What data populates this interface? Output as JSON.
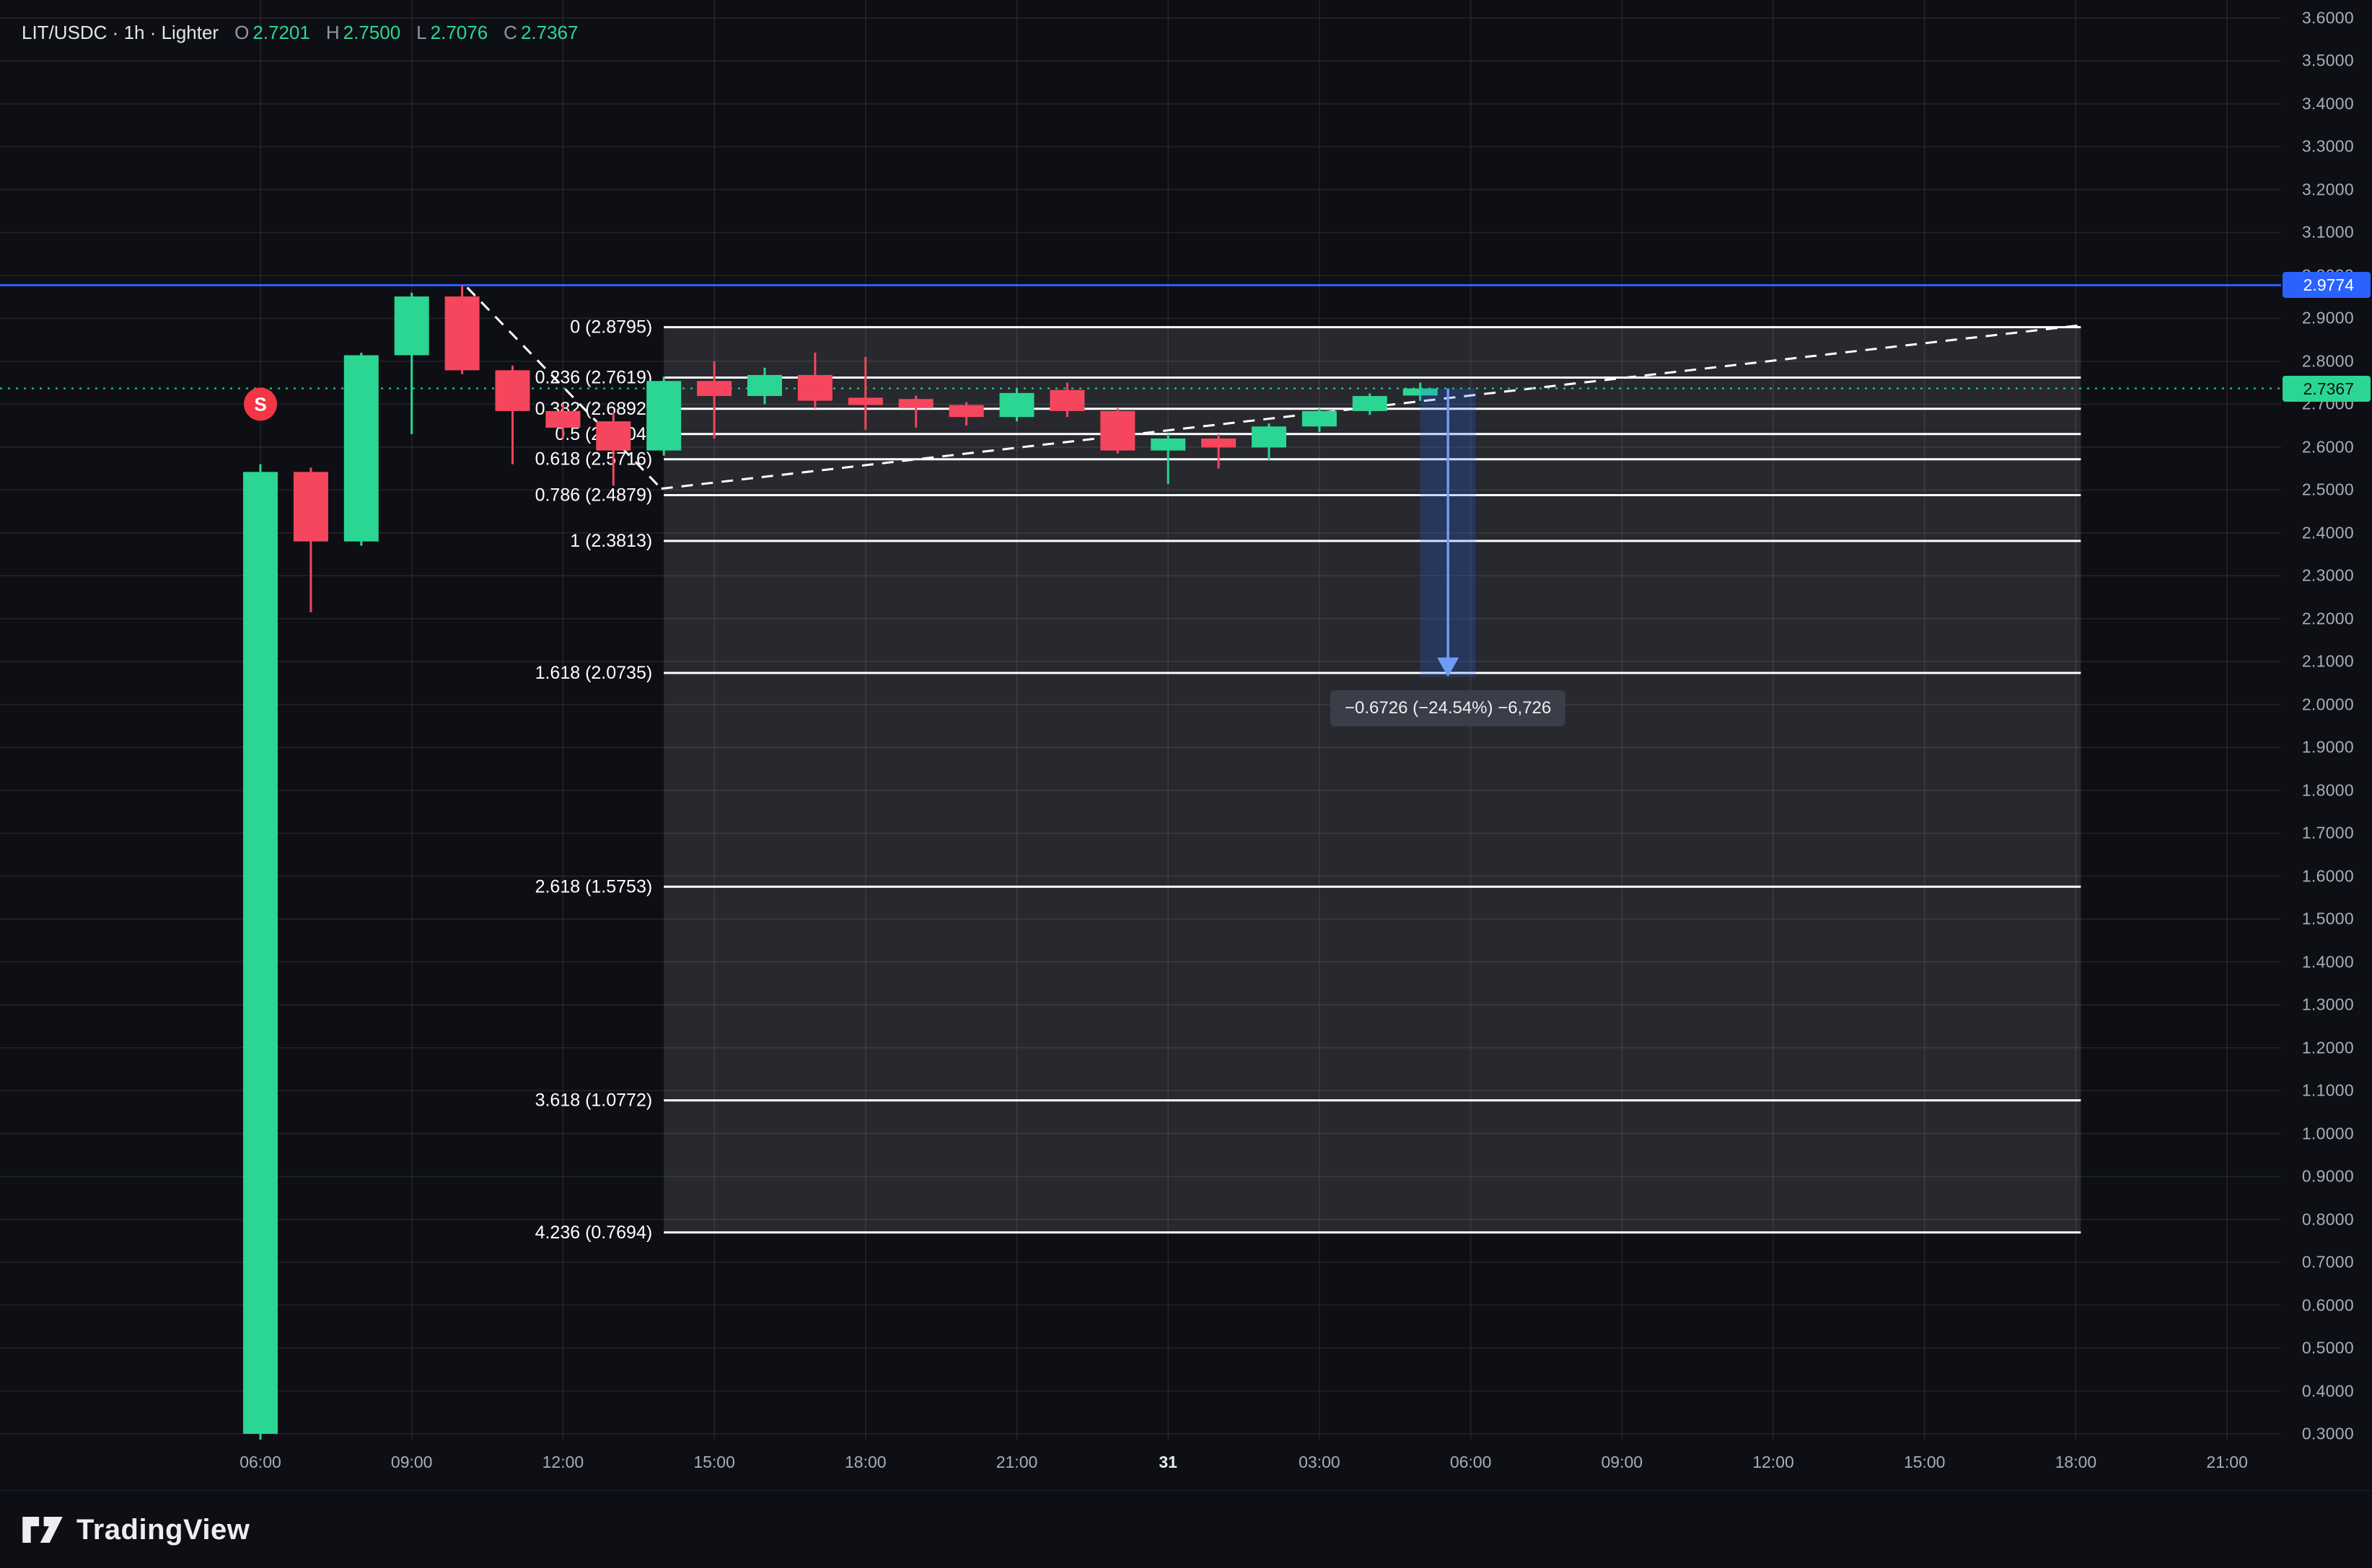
{
  "header": {
    "title": "LIT/USDC · 1h · Lighter",
    "ohlc": [
      {
        "key": "O",
        "value": "2.7201"
      },
      {
        "key": "H",
        "value": "2.7500"
      },
      {
        "key": "L",
        "value": "2.7076"
      },
      {
        "key": "C",
        "value": "2.7367"
      }
    ]
  },
  "footer": {
    "brand": "TradingView"
  },
  "colors": {
    "background": "#0e0f14",
    "up": "#2bd693",
    "down": "#f6465d",
    "blue": "#2962ff",
    "grid": "rgba(255,255,255,0.09)",
    "fib_line": "#ffffff",
    "fib_fill": "rgba(210,215,225,0.13)",
    "axis_text": "#a8adb8",
    "marker": "#f23645",
    "measure_fill": "rgba(41,98,255,0.22)",
    "measure_arrow": "#6e9bf7"
  },
  "chart_data": {
    "type": "candlestick",
    "title": "LIT/USDC 1h Lighter",
    "price_axis": {
      "min": 0.3,
      "max": 3.6,
      "step": 0.1,
      "decimals": 4
    },
    "time_axis": [
      {
        "t": 0,
        "label": "06:00"
      },
      {
        "t": 3,
        "label": "09:00"
      },
      {
        "t": 6,
        "label": "12:00"
      },
      {
        "t": 9,
        "label": "15:00"
      },
      {
        "t": 12,
        "label": "18:00"
      },
      {
        "t": 15,
        "label": "21:00"
      },
      {
        "t": 18,
        "label": "31",
        "bold": true
      },
      {
        "t": 21,
        "label": "03:00"
      },
      {
        "t": 24,
        "label": "06:00"
      },
      {
        "t": 27,
        "label": "09:00"
      },
      {
        "t": 30,
        "label": "12:00"
      },
      {
        "t": 33,
        "label": "15:00"
      },
      {
        "t": 36,
        "label": "18:00"
      },
      {
        "t": 39,
        "label": "21:00"
      }
    ],
    "candles": [
      {
        "time": "06:00",
        "o": 0.3,
        "h": 2.56,
        "l": 0.285,
        "c": 2.542
      },
      {
        "time": "07:00",
        "o": 2.542,
        "h": 2.552,
        "l": 2.215,
        "c": 2.38
      },
      {
        "time": "08:00",
        "o": 2.38,
        "h": 2.82,
        "l": 2.37,
        "c": 2.814
      },
      {
        "time": "09:00",
        "o": 2.814,
        "h": 2.96,
        "l": 2.63,
        "c": 2.951
      },
      {
        "time": "10:00",
        "o": 2.951,
        "h": 2.977,
        "l": 2.77,
        "c": 2.779
      },
      {
        "time": "11:00",
        "o": 2.779,
        "h": 2.79,
        "l": 2.56,
        "c": 2.684
      },
      {
        "time": "12:00",
        "o": 2.684,
        "h": 2.7,
        "l": 2.62,
        "c": 2.645
      },
      {
        "time": "13:00",
        "o": 2.66,
        "h": 2.68,
        "l": 2.51,
        "c": 2.592
      },
      {
        "time": "14:00",
        "o": 2.592,
        "h": 2.764,
        "l": 2.58,
        "c": 2.754
      },
      {
        "time": "15:00",
        "o": 2.754,
        "h": 2.8,
        "l": 2.62,
        "c": 2.719
      },
      {
        "time": "16:00",
        "o": 2.719,
        "h": 2.785,
        "l": 2.7,
        "c": 2.768
      },
      {
        "time": "17:00",
        "o": 2.768,
        "h": 2.82,
        "l": 2.69,
        "c": 2.708
      },
      {
        "time": "18:00",
        "o": 2.715,
        "h": 2.81,
        "l": 2.64,
        "c": 2.698
      },
      {
        "time": "19:00",
        "o": 2.712,
        "h": 2.72,
        "l": 2.645,
        "c": 2.691
      },
      {
        "time": "20:00",
        "o": 2.698,
        "h": 2.705,
        "l": 2.65,
        "c": 2.67
      },
      {
        "time": "21:00",
        "o": 2.67,
        "h": 2.735,
        "l": 2.66,
        "c": 2.726
      },
      {
        "time": "22:00",
        "o": 2.733,
        "h": 2.75,
        "l": 2.67,
        "c": 2.684
      },
      {
        "time": "23:00",
        "o": 2.684,
        "h": 2.69,
        "l": 2.585,
        "c": 2.592
      },
      {
        "time": "00:00",
        "o": 2.592,
        "h": 2.63,
        "l": 2.514,
        "c": 2.62
      },
      {
        "time": "01:00",
        "o": 2.62,
        "h": 2.63,
        "l": 2.55,
        "c": 2.599
      },
      {
        "time": "02:00",
        "o": 2.599,
        "h": 2.655,
        "l": 2.57,
        "c": 2.648
      },
      {
        "time": "03:00",
        "o": 2.648,
        "h": 2.69,
        "l": 2.635,
        "c": 2.684
      },
      {
        "time": "04:00",
        "o": 2.684,
        "h": 2.725,
        "l": 2.675,
        "c": 2.719
      },
      {
        "time": "05:00",
        "o": 2.7201,
        "h": 2.75,
        "l": 2.7076,
        "c": 2.7367
      }
    ],
    "fib": {
      "t1": 8.0,
      "t2": 36.1,
      "levels": [
        {
          "label": "0 (2.8795)",
          "price": 2.8795
        },
        {
          "label": "0.236 (2.7619)",
          "price": 2.7619
        },
        {
          "label": "0.382 (2.6892)",
          "price": 2.6892
        },
        {
          "label": "0.5 (2.6304)",
          "price": 2.6304
        },
        {
          "label": "0.618 (2.5716)",
          "price": 2.5716
        },
        {
          "label": "0.786 (2.4879)",
          "price": 2.4879
        },
        {
          "label": "1 (2.3813)",
          "price": 2.3813
        },
        {
          "label": "1.618 (2.0735)",
          "price": 2.0735
        },
        {
          "label": "2.618 (1.5753)",
          "price": 1.5753
        },
        {
          "label": "3.618 (1.0772)",
          "price": 1.0772
        },
        {
          "label": "4.236 (0.7694)",
          "price": 0.7694
        }
      ]
    },
    "horizontal_line": {
      "price": 2.9774,
      "label": "2.9774"
    },
    "current_price_line": {
      "price": 2.7367,
      "label": "2.7367"
    },
    "trendlines": [
      {
        "from": {
          "t": 4.1,
          "price": 2.972
        },
        "to": {
          "t": 7.95,
          "price": 2.503
        }
      },
      {
        "from": {
          "t": 7.95,
          "price": 2.503
        },
        "to": {
          "t": 36.1,
          "price": 2.884
        }
      }
    ],
    "measure": {
      "t1": 23.0,
      "t2": 24.1,
      "price_from": 2.7367,
      "price_to": 2.0641,
      "label": "−0.6726 (−24.54%) −6,726"
    },
    "marker": {
      "t": 0,
      "price": 2.7,
      "text": "S"
    }
  }
}
